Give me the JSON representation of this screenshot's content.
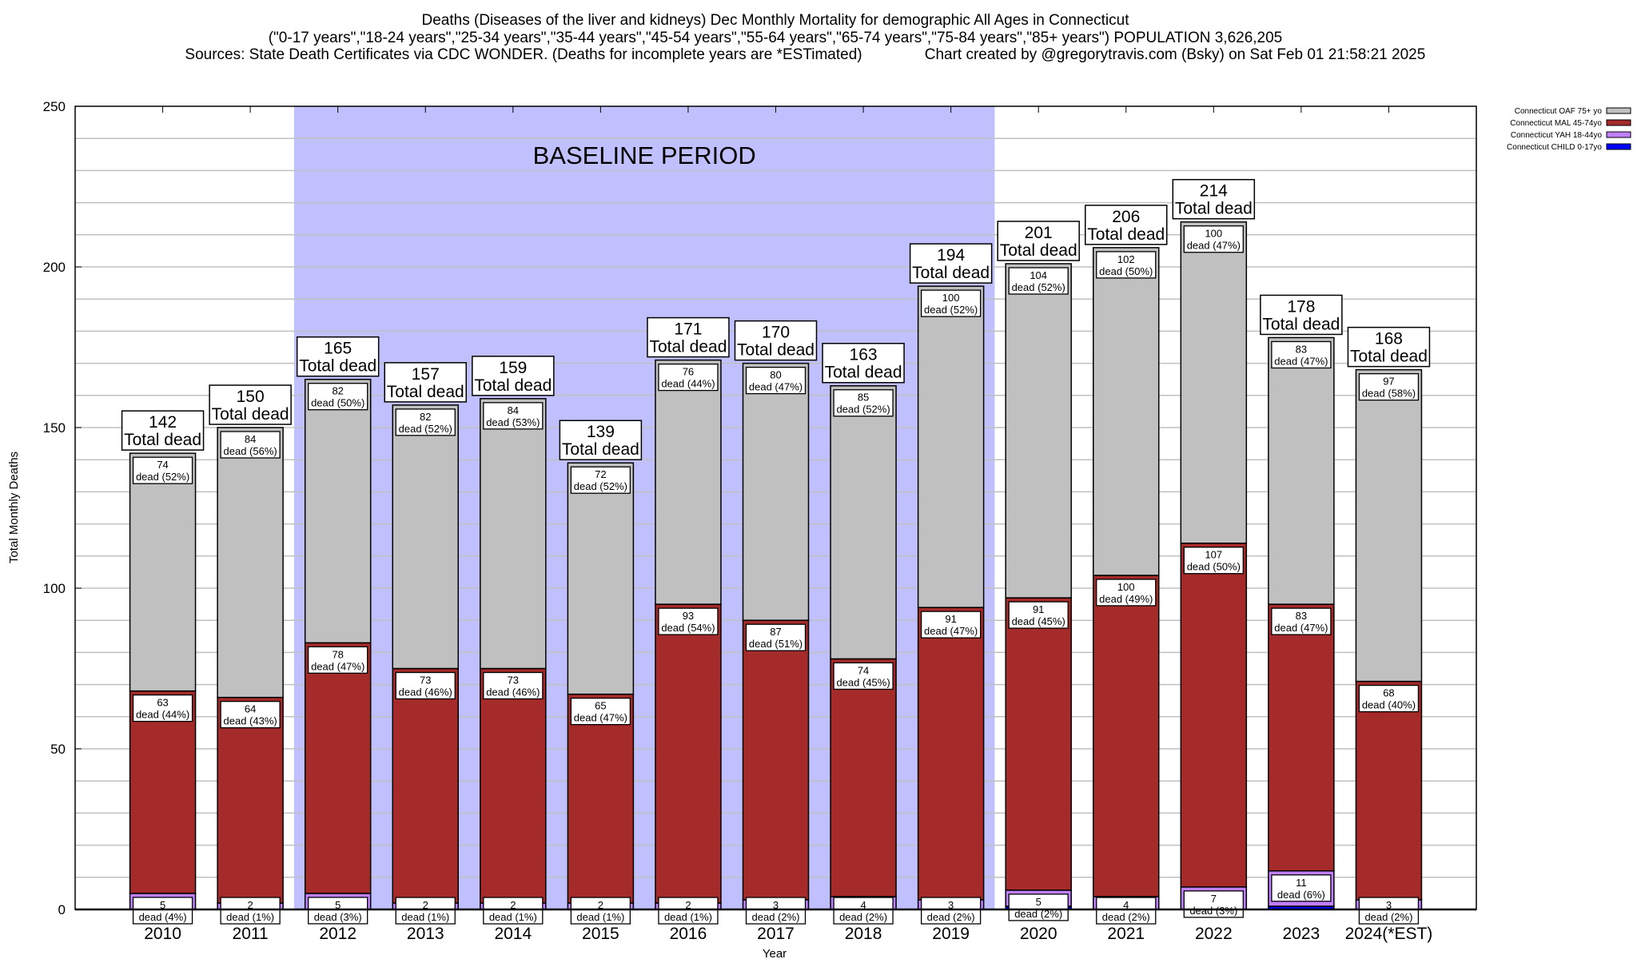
{
  "chart_data": {
    "type": "bar",
    "stacked": true,
    "title": [
      "Deaths (Diseases of the liver and kidneys) Dec Monthly Mortality for demographic All Ages in Connecticut",
      "(\"0-17 years\",\"18-24 years\",\"25-34 years\",\"35-44 years\",\"45-54 years\",\"55-64 years\",\"65-74 years\",\"75-84 years\",\"85+ years\") POPULATION 3,626,205",
      "Sources: State Death Certificates via CDC WONDER. (Deaths for incomplete years are *ESTimated)",
      "Chart created by @gregorytravis.com (Bsky) on Sat Feb 01 21:58:21 2025"
    ],
    "xlabel": "Year",
    "ylabel": "Total Monthly Deaths",
    "ylim": [
      0,
      250
    ],
    "yticks": [
      0,
      50,
      100,
      150,
      200,
      250
    ],
    "grid": true,
    "grid_step": 10,
    "legend_position": "top-right",
    "annotation": "BASELINE PERIOD",
    "baseline_period": [
      "2012",
      "2019"
    ],
    "baseline_color": "#c0c0ff",
    "total_suffix": "Total dead",
    "segment_suffix": "dead",
    "categories": [
      "2010",
      "2011",
      "2012",
      "2013",
      "2014",
      "2015",
      "2016",
      "2017",
      "2018",
      "2019",
      "2020",
      "2021",
      "2022",
      "2023",
      "2024(*EST)"
    ],
    "totals": [
      142,
      150,
      165,
      157,
      159,
      139,
      171,
      170,
      163,
      194,
      201,
      206,
      214,
      178,
      168
    ],
    "series": [
      {
        "name": "Connecticut CHILD 0-17yo",
        "color": "#0000ff",
        "values": [
          0,
          0,
          0,
          0,
          0,
          0,
          0,
          0,
          0,
          0,
          1,
          0,
          0,
          1,
          0
        ],
        "pct": [],
        "labeled": false
      },
      {
        "name": "Connecticut YAH 18-44yo",
        "color": "#c080ff",
        "values": [
          5,
          2,
          5,
          2,
          2,
          2,
          2,
          3,
          4,
          3,
          5,
          4,
          7,
          11,
          3
        ],
        "pct": [
          "4%",
          "1%",
          "3%",
          "1%",
          "1%",
          "1%",
          "1%",
          "2%",
          "2%",
          "2%",
          "2%",
          "2%",
          "3%",
          "6%",
          "2%"
        ],
        "labeled": true
      },
      {
        "name": "Connecticut MAL 45-74yo",
        "color": "#a52a2a",
        "values": [
          63,
          64,
          78,
          73,
          73,
          65,
          93,
          87,
          74,
          91,
          91,
          100,
          107,
          83,
          68
        ],
        "pct": [
          "44%",
          "43%",
          "47%",
          "46%",
          "46%",
          "47%",
          "54%",
          "51%",
          "45%",
          "47%",
          "45%",
          "49%",
          "50%",
          "47%",
          "40%"
        ],
        "labeled": true
      },
      {
        "name": "Connecticut OAF 75+ yo",
        "color": "#c0c0c0",
        "values": [
          74,
          84,
          82,
          82,
          84,
          72,
          76,
          80,
          85,
          100,
          104,
          102,
          100,
          83,
          97
        ],
        "pct": [
          "52%",
          "56%",
          "50%",
          "52%",
          "53%",
          "52%",
          "44%",
          "47%",
          "52%",
          "52%",
          "52%",
          "50%",
          "47%",
          "47%",
          "58%"
        ],
        "labeled": true
      }
    ]
  }
}
